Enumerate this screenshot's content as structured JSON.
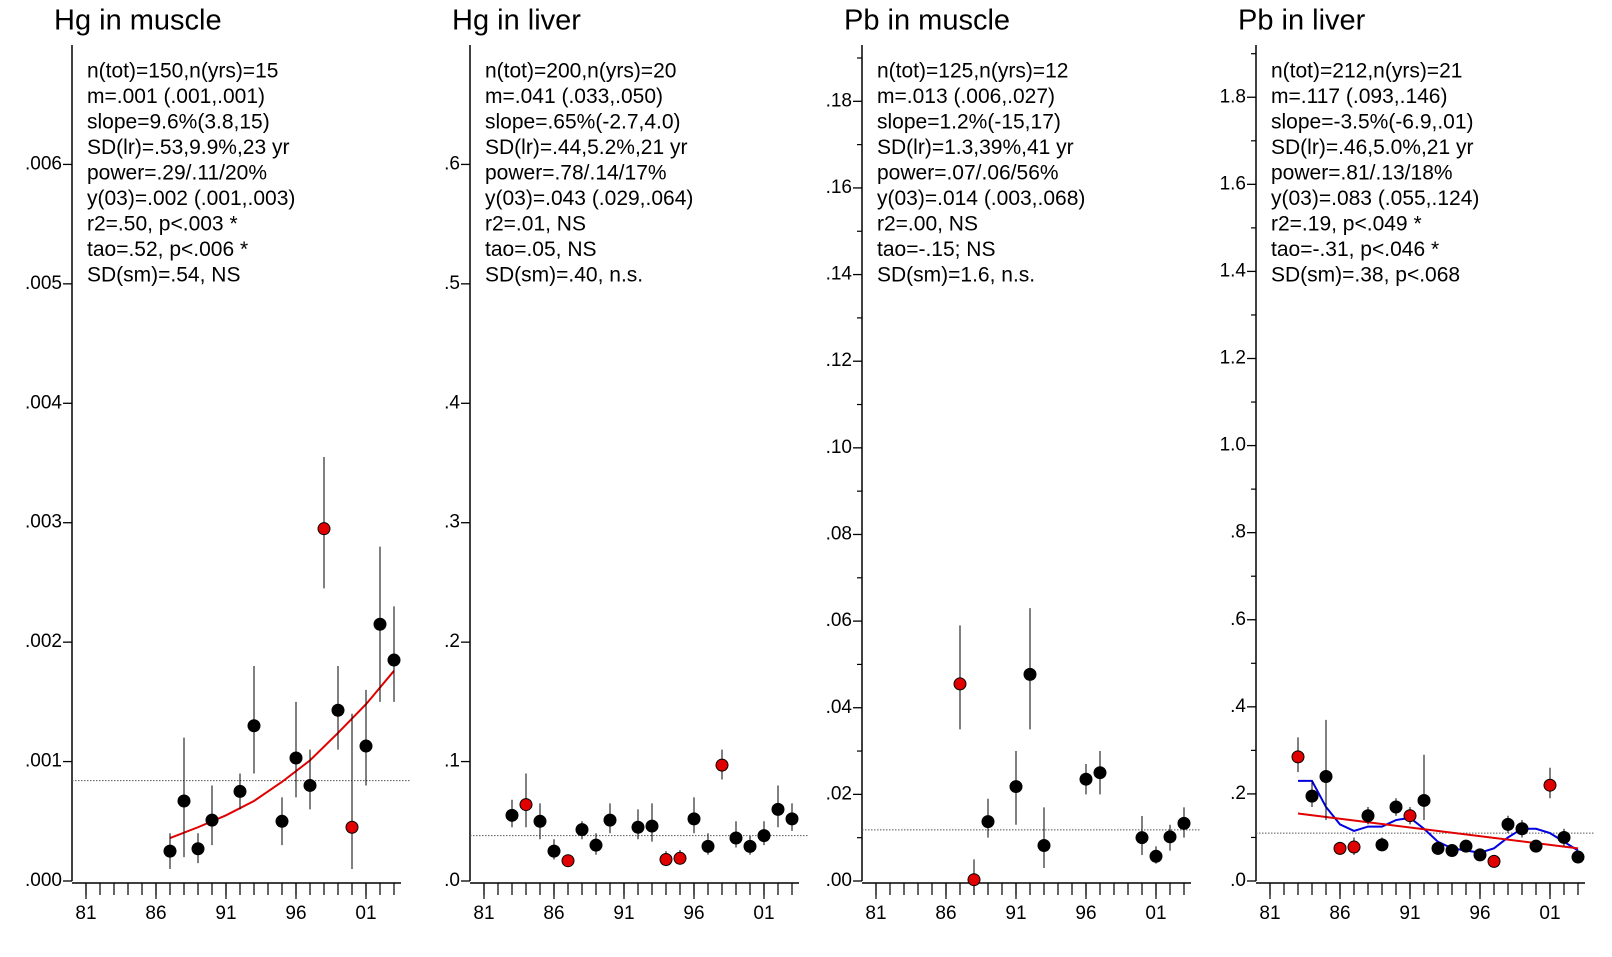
{
  "chart_data": [
    {
      "type": "scatter",
      "title": "Hg in muscle",
      "stats": [
        "n(tot)=150,n(yrs)=15",
        "m=.001 (.001,.001)",
        "slope=9.6%(3.8,15)",
        "SD(lr)=.53,9.9%,23 yr",
        "power=.29/.11/20%",
        "y(03)=.002 (.001,.003)",
        "r2=.50, p<.003 *",
        "tao=.52, p<.006 *",
        "SD(sm)=.54, NS"
      ],
      "x": [
        1987,
        1988,
        1989,
        1990,
        1992,
        1993,
        1995,
        1996,
        1997,
        1998,
        1999,
        2000,
        2001,
        2002,
        2003
      ],
      "values": [
        0.00025,
        0.00067,
        0.00027,
        0.00051,
        0.00075,
        0.0013,
        0.0005,
        0.00103,
        0.0008,
        0.00295,
        0.00143,
        0.00045,
        0.00113,
        0.00215,
        0.00185
      ],
      "lo": [
        0.0001,
        0.0002,
        0.00015,
        0.0003,
        0.0006,
        0.0009,
        0.0003,
        0.0007,
        0.0006,
        0.00245,
        0.0011,
        0.0001,
        0.0008,
        0.0015,
        0.0015
      ],
      "hi": [
        0.0004,
        0.0012,
        0.0004,
        0.0008,
        0.0009,
        0.0018,
        0.0007,
        0.0015,
        0.0011,
        0.00355,
        0.0018,
        0.0014,
        0.0016,
        0.0028,
        0.0023
      ],
      "point_colors": [
        "black",
        "black",
        "black",
        "black",
        "black",
        "black",
        "black",
        "black",
        "black",
        "#e00000",
        "black",
        "#e00000",
        "black",
        "black",
        "black"
      ],
      "fit": {
        "color": "#e00000",
        "x": [
          1987,
          1989,
          1991,
          1993,
          1995,
          1997,
          1999,
          2001,
          2003
        ],
        "values": [
          0.00036,
          0.00045,
          0.00055,
          0.00067,
          0.00083,
          0.00101,
          0.00124,
          0.00148,
          0.00176
        ]
      },
      "reference": 0.00084,
      "ylim": [
        0,
        0.007
      ],
      "yticks": [
        {
          "value": 0,
          "label": ".000"
        },
        {
          "value": 0.001,
          "label": ".001"
        },
        {
          "value": 0.002,
          "label": ".002"
        },
        {
          "value": 0.003,
          "label": ".003"
        },
        {
          "value": 0.004,
          "label": ".004"
        },
        {
          "value": 0.005,
          "label": ".005"
        },
        {
          "value": 0.006,
          "label": ".006"
        }
      ],
      "yminorticks": [],
      "xlim": [
        1980,
        2003.5
      ],
      "xticks": [
        {
          "value": 1981,
          "label": "81"
        },
        {
          "value": 1986,
          "label": "86"
        },
        {
          "value": 1991,
          "label": "91"
        },
        {
          "value": 1996,
          "label": "96"
        },
        {
          "value": 2001,
          "label": "01"
        }
      ],
      "xminorticks": [
        1981,
        1982,
        1983,
        1984,
        1985,
        1986,
        1987,
        1988,
        1989,
        1990,
        1991,
        1992,
        1993,
        1994,
        1995,
        1996,
        1997,
        1998,
        1999,
        2000,
        2001,
        2002,
        2003
      ]
    },
    {
      "type": "scatter",
      "title": "Hg in liver",
      "stats": [
        "n(tot)=200,n(yrs)=20",
        "m=.041 (.033,.050)",
        "slope=.65%(-2.7,4.0)",
        "SD(lr)=.44,5.2%,21 yr",
        "power=.78/.14/17%",
        "y(03)=.043 (.029,.064)",
        "r2=.01, NS",
        "tao=.05, NS",
        "SD(sm)=.40, n.s."
      ],
      "x": [
        1983,
        1984,
        1985,
        1986,
        1987,
        1988,
        1989,
        1990,
        1992,
        1993,
        1994,
        1995,
        1996,
        1997,
        1998,
        1999,
        2000,
        2001,
        2002,
        2003
      ],
      "values": [
        0.055,
        0.064,
        0.05,
        0.025,
        0.017,
        0.043,
        0.03,
        0.051,
        0.045,
        0.046,
        0.018,
        0.019,
        0.052,
        0.029,
        0.097,
        0.036,
        0.029,
        0.038,
        0.06,
        0.052
      ],
      "lo": [
        0.045,
        0.045,
        0.035,
        0.018,
        0.013,
        0.035,
        0.022,
        0.04,
        0.035,
        0.033,
        0.013,
        0.014,
        0.04,
        0.022,
        0.085,
        0.028,
        0.022,
        0.03,
        0.045,
        0.042
      ],
      "hi": [
        0.068,
        0.09,
        0.065,
        0.035,
        0.022,
        0.05,
        0.04,
        0.065,
        0.06,
        0.065,
        0.025,
        0.026,
        0.07,
        0.04,
        0.11,
        0.05,
        0.038,
        0.05,
        0.08,
        0.065
      ],
      "point_colors": [
        "black",
        "#e00000",
        "black",
        "black",
        "#e00000",
        "black",
        "black",
        "black",
        "black",
        "black",
        "#e00000",
        "#e00000",
        "black",
        "black",
        "#e00000",
        "black",
        "black",
        "black",
        "black",
        "black"
      ],
      "reference": 0.038,
      "ylim": [
        0,
        0.7
      ],
      "yticks": [
        {
          "value": 0,
          "label": ".0"
        },
        {
          "value": 0.1,
          "label": ".1"
        },
        {
          "value": 0.2,
          "label": ".2"
        },
        {
          "value": 0.3,
          "label": ".3"
        },
        {
          "value": 0.4,
          "label": ".4"
        },
        {
          "value": 0.5,
          "label": ".5"
        },
        {
          "value": 0.6,
          "label": ".6"
        }
      ],
      "yminorticks": [],
      "xlim": [
        1980,
        2003.5
      ],
      "xticks": [
        {
          "value": 1981,
          "label": "81"
        },
        {
          "value": 1986,
          "label": "86"
        },
        {
          "value": 1991,
          "label": "91"
        },
        {
          "value": 1996,
          "label": "96"
        },
        {
          "value": 2001,
          "label": "01"
        }
      ],
      "xminorticks": [
        1981,
        1982,
        1983,
        1984,
        1985,
        1986,
        1987,
        1988,
        1989,
        1990,
        1991,
        1992,
        1993,
        1994,
        1995,
        1996,
        1997,
        1998,
        1999,
        2000,
        2001,
        2002,
        2003
      ]
    },
    {
      "type": "scatter",
      "title": "Pb in muscle",
      "stats": [
        "n(tot)=125,n(yrs)=12",
        "m=.013 (.006,.027)",
        "slope=1.2%(-15,17)",
        "SD(lr)=1.3,39%,41 yr",
        "power=.07/.06/56%",
        "y(03)=.014 (.003,.068)",
        "r2=.00, NS",
        "tao=-.15; NS",
        "SD(sm)=1.6, n.s."
      ],
      "x": [
        1987,
        1988,
        1989,
        1991,
        1992,
        1993,
        1996,
        1997,
        2000,
        2001,
        2002,
        2003
      ],
      "values": [
        0.0455,
        0.0003,
        0.0137,
        0.0218,
        0.0477,
        0.0082,
        0.0235,
        0.025,
        0.01,
        0.0057,
        0.0102,
        0.0133
      ],
      "lo": [
        0.035,
        0.0001,
        0.01,
        0.013,
        0.035,
        0.003,
        0.02,
        0.02,
        0.006,
        0.004,
        0.007,
        0.01
      ],
      "hi": [
        0.059,
        0.005,
        0.019,
        0.03,
        0.063,
        0.017,
        0.027,
        0.03,
        0.015,
        0.008,
        0.013,
        0.017
      ],
      "point_colors": [
        "#e00000",
        "#e00000",
        "black",
        "black",
        "black",
        "black",
        "black",
        "black",
        "black",
        "black",
        "black",
        "black"
      ],
      "reference": 0.0118,
      "ylim": [
        0,
        0.193
      ],
      "yticks": [
        {
          "value": 0,
          "label": ".00"
        },
        {
          "value": 0.02,
          "label": ".02"
        },
        {
          "value": 0.04,
          "label": ".04"
        },
        {
          "value": 0.06,
          "label": ".06"
        },
        {
          "value": 0.08,
          "label": ".08"
        },
        {
          "value": 0.1,
          "label": ".10"
        },
        {
          "value": 0.12,
          "label": ".12"
        },
        {
          "value": 0.14,
          "label": ".14"
        },
        {
          "value": 0.16,
          "label": ".16"
        },
        {
          "value": 0.18,
          "label": ".18"
        }
      ],
      "yminorticks": [
        0.01,
        0.03,
        0.05,
        0.07,
        0.09,
        0.11,
        0.13,
        0.15,
        0.17,
        0.19
      ],
      "xlim": [
        1980,
        2003.5
      ],
      "xticks": [
        {
          "value": 1981,
          "label": "81"
        },
        {
          "value": 1986,
          "label": "86"
        },
        {
          "value": 1991,
          "label": "91"
        },
        {
          "value": 1996,
          "label": "96"
        },
        {
          "value": 2001,
          "label": "01"
        }
      ],
      "xminorticks": [
        1981,
        1982,
        1983,
        1984,
        1985,
        1986,
        1987,
        1988,
        1989,
        1990,
        1991,
        1992,
        1993,
        1994,
        1995,
        1996,
        1997,
        1998,
        1999,
        2000,
        2001,
        2002,
        2003
      ]
    },
    {
      "type": "scatter",
      "title": "Pb in liver",
      "stats": [
        "n(tot)=212,n(yrs)=21",
        "m=.117 (.093,.146)",
        "slope=-3.5%(-6.9,.01)",
        "SD(lr)=.46,5.0%,21 yr",
        "power=.81/.13/18%",
        "y(03)=.083 (.055,.124)",
        "r2=.19, p<.049 *",
        "tao=-.31, p<.046 *",
        "SD(sm)=.38, p<.068"
      ],
      "x": [
        1983,
        1984,
        1985,
        1986,
        1987,
        1988,
        1989,
        1990,
        1991,
        1992,
        1993,
        1994,
        1995,
        1996,
        1997,
        1998,
        1999,
        2000,
        2001,
        2002,
        2003
      ],
      "values": [
        0.285,
        0.195,
        0.24,
        0.075,
        0.078,
        0.15,
        0.083,
        0.17,
        0.15,
        0.185,
        0.075,
        0.07,
        0.08,
        0.06,
        0.045,
        0.13,
        0.12,
        0.08,
        0.22,
        0.1,
        0.055
      ],
      "lo": [
        0.25,
        0.17,
        0.14,
        0.06,
        0.06,
        0.13,
        0.07,
        0.15,
        0.13,
        0.14,
        0.06,
        0.06,
        0.07,
        0.05,
        0.04,
        0.11,
        0.1,
        0.07,
        0.19,
        0.08,
        0.05
      ],
      "hi": [
        0.33,
        0.23,
        0.37,
        0.09,
        0.1,
        0.17,
        0.1,
        0.19,
        0.17,
        0.29,
        0.09,
        0.08,
        0.09,
        0.07,
        0.05,
        0.15,
        0.14,
        0.09,
        0.26,
        0.12,
        0.06
      ],
      "point_colors": [
        "#e00000",
        "black",
        "black",
        "#e00000",
        "#e00000",
        "black",
        "black",
        "black",
        "#e00000",
        "black",
        "black",
        "black",
        "black",
        "black",
        "#e00000",
        "black",
        "black",
        "black",
        "#e00000",
        "black",
        "black"
      ],
      "fit": {
        "color": "#e00000",
        "x": [
          1983,
          2003
        ],
        "values": [
          0.155,
          0.075
        ]
      },
      "smooth": {
        "color": "#0000e0",
        "x": [
          1983,
          1984,
          1985,
          1986,
          1987,
          1988,
          1989,
          1990,
          1991,
          1992,
          1993,
          1994,
          1995,
          1996,
          1997,
          1998,
          1999,
          2000,
          2001,
          2002,
          2003
        ],
        "values": [
          0.23,
          0.23,
          0.17,
          0.13,
          0.115,
          0.125,
          0.125,
          0.14,
          0.145,
          0.12,
          0.09,
          0.075,
          0.07,
          0.065,
          0.075,
          0.1,
          0.12,
          0.12,
          0.11,
          0.09,
          0.07
        ]
      },
      "reference": 0.11,
      "ylim": [
        0,
        1.92
      ],
      "yticks": [
        {
          "value": 0,
          "label": ".0"
        },
        {
          "value": 0.2,
          "label": ".2"
        },
        {
          "value": 0.4,
          "label": ".4"
        },
        {
          "value": 0.6,
          "label": ".6"
        },
        {
          "value": 0.8,
          "label": ".8"
        },
        {
          "value": 1,
          "label": "1.0"
        },
        1.2,
        1.4,
        1.6,
        1.8
      ],
      "yminorticks": [
        0.1,
        0.3,
        0.5,
        0.7,
        0.9,
        1.1,
        1.3,
        1.5,
        1.7,
        1.9
      ],
      "xlim": [
        1980,
        2003.5
      ],
      "xticks": [
        {
          "value": 1981,
          "label": "81"
        },
        {
          "value": 1986,
          "label": "86"
        },
        {
          "value": 1991,
          "label": "91"
        },
        {
          "value": 1996,
          "label": "96"
        },
        {
          "value": 2001,
          "label": "01"
        }
      ],
      "xminorticks": [
        1981,
        1982,
        1983,
        1984,
        1985,
        1986,
        1987,
        1988,
        1989,
        1990,
        1991,
        1992,
        1993,
        1994,
        1995,
        1996,
        1997,
        1998,
        1999,
        2000,
        2001,
        2002,
        2003
      ]
    }
  ]
}
